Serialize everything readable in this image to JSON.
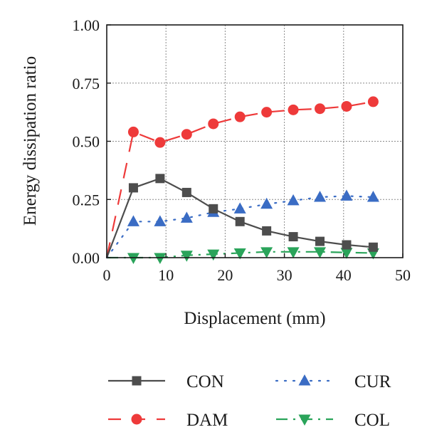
{
  "chart_data": {
    "type": "line",
    "xlabel": "Displacement (mm)",
    "ylabel": "Energy dissipation ratio",
    "xlim": [
      0,
      50
    ],
    "ylim": [
      0,
      1
    ],
    "x_ticks": [
      "0",
      "10",
      "20",
      "30",
      "40",
      "50"
    ],
    "y_ticks": [
      "0.00",
      "0.25",
      "0.50",
      "0.75",
      "1.00"
    ],
    "grid": true,
    "legend_position": "bottom",
    "series": [
      {
        "name": "CON",
        "color": "#4d4d4d",
        "marker": "square",
        "line_style": "solid",
        "x": [
          0,
          4.5,
          9,
          13.5,
          18,
          22.5,
          27,
          31.5,
          36,
          40.5,
          45
        ],
        "y": [
          0,
          0.3,
          0.34,
          0.28,
          0.21,
          0.155,
          0.115,
          0.09,
          0.07,
          0.055,
          0.045
        ]
      },
      {
        "name": "DAM",
        "color": "#ee3a3a",
        "marker": "circle",
        "line_style": "dash",
        "x": [
          0,
          4.5,
          9,
          13.5,
          18,
          22.5,
          27,
          31.5,
          36,
          40.5,
          45
        ],
        "y": [
          0,
          0.54,
          0.495,
          0.53,
          0.575,
          0.605,
          0.625,
          0.635,
          0.64,
          0.65,
          0.67
        ]
      },
      {
        "name": "CUR",
        "color": "#3a6cc4",
        "marker": "triangle-up",
        "line_style": "dot",
        "x": [
          0,
          4.5,
          9,
          13.5,
          18,
          22.5,
          27,
          31.5,
          36,
          40.5,
          45
        ],
        "y": [
          0,
          0.155,
          0.155,
          0.17,
          0.195,
          0.21,
          0.23,
          0.245,
          0.26,
          0.265,
          0.26
        ]
      },
      {
        "name": "COL",
        "color": "#2aa45a",
        "marker": "triangle-down",
        "line_style": "dashdot",
        "x": [
          0,
          4.5,
          9,
          13.5,
          18,
          22.5,
          27,
          31.5,
          36,
          40.5,
          45
        ],
        "y": [
          0,
          0.0,
          0.0,
          0.01,
          0.015,
          0.02,
          0.025,
          0.025,
          0.025,
          0.022,
          0.02
        ]
      }
    ]
  }
}
